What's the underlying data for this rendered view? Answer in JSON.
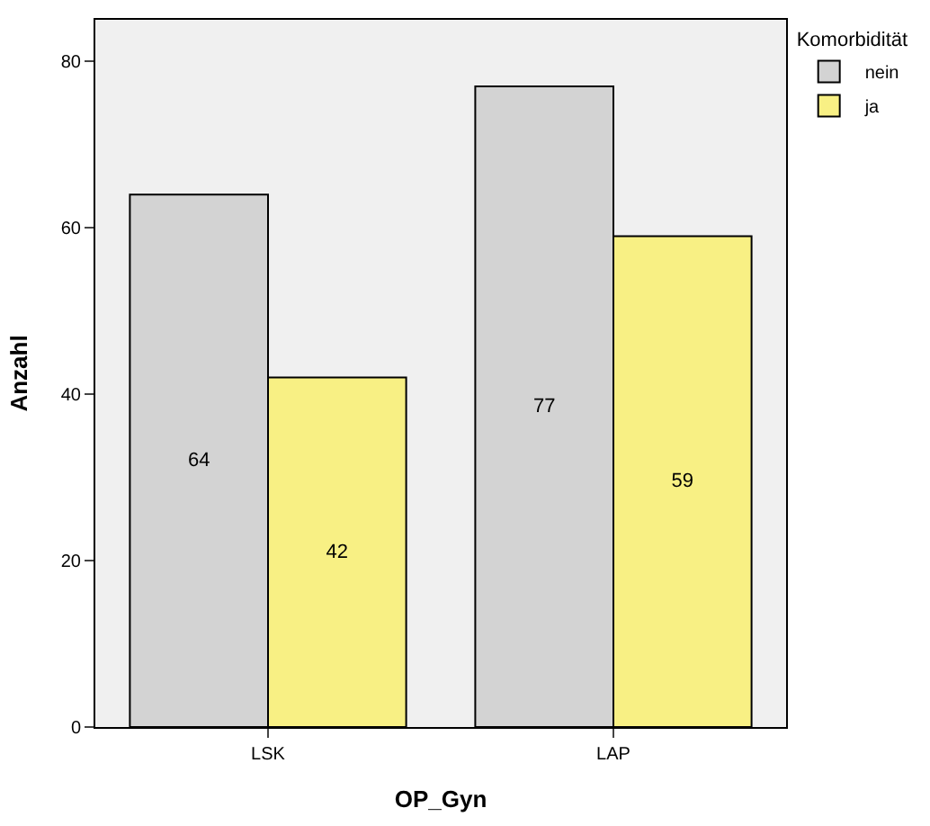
{
  "chart_data": {
    "type": "bar",
    "xlabel": "OP_Gyn",
    "ylabel": "Anzahl",
    "legend_title": "Komorbidität",
    "categories": [
      "LSK",
      "LAP"
    ],
    "series": [
      {
        "name": "nein",
        "color": "#d3d3d3",
        "values": [
          64,
          77
        ]
      },
      {
        "name": "ja",
        "color": "#f8f084",
        "values": [
          42,
          59
        ]
      }
    ],
    "ylim": [
      0,
      85
    ],
    "yticks": [
      0,
      20,
      40,
      60,
      80
    ],
    "grid": false,
    "legend": "top right",
    "data_labels": true
  }
}
